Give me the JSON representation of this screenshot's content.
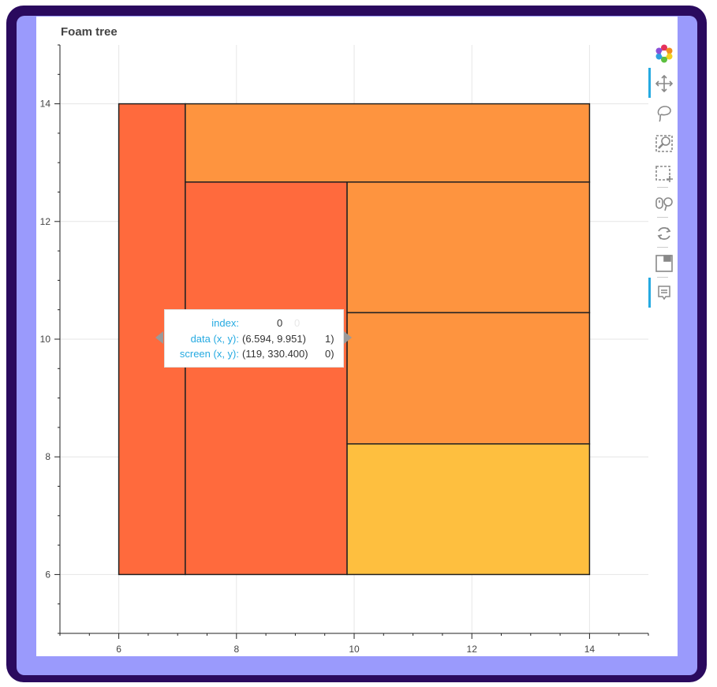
{
  "chart_data": {
    "type": "rect",
    "title": "Foam tree",
    "xlabel": "",
    "ylabel": "",
    "xlim": [
      5,
      15
    ],
    "ylim": [
      5,
      15
    ],
    "xticks": [
      6,
      8,
      10,
      12,
      14
    ],
    "yticks": [
      6,
      8,
      10,
      12,
      14
    ],
    "grid": true,
    "rects": [
      {
        "x0": 6.0,
        "x1": 7.13,
        "y0": 6.0,
        "y1": 14.0,
        "color": "#ff6a3d"
      },
      {
        "x0": 7.13,
        "x1": 14.0,
        "y0": 12.67,
        "y1": 14.0,
        "color": "#fe943f"
      },
      {
        "x0": 7.13,
        "x1": 9.88,
        "y0": 6.0,
        "y1": 12.67,
        "color": "#ff6a3d"
      },
      {
        "x0": 9.88,
        "x1": 14.0,
        "y0": 10.45,
        "y1": 12.67,
        "color": "#fe943f"
      },
      {
        "x0": 9.88,
        "x1": 14.0,
        "y0": 8.22,
        "y1": 10.45,
        "color": "#fe943f"
      },
      {
        "x0": 9.88,
        "x1": 14.0,
        "y0": 6.0,
        "y1": 8.22,
        "color": "#febf3f"
      }
    ]
  },
  "tooltip": {
    "index_label": "index:",
    "index_value": "0",
    "data_label": "data (x, y):",
    "data_value": "(6.594, 9.951)",
    "screen_label": "screen (x, y):",
    "screen_value": "(119, 330.400)",
    "ghost_index": "0",
    "ghost_data": "1)",
    "ghost_screen": "0)"
  },
  "toolbar": {
    "tools": [
      "bokeh-logo-icon",
      "pan-icon",
      "lasso-select-icon",
      "box-zoom-icon",
      "box-select-icon",
      "wheel-zoom-icon",
      "reset-icon",
      "save-icon",
      "hover-icon"
    ],
    "accent": "#26aae1"
  }
}
